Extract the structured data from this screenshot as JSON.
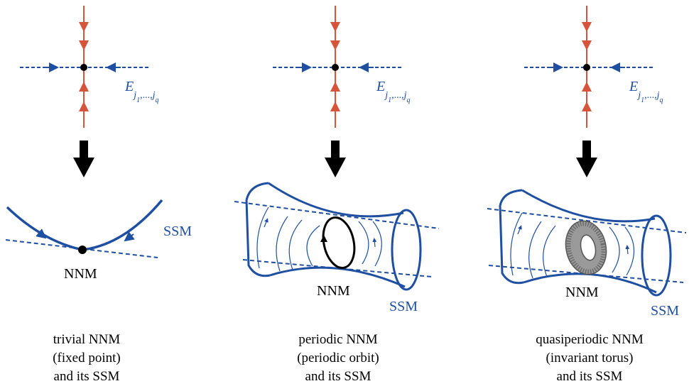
{
  "colors": {
    "blue": "#1f4fa0",
    "light_blue": "#3f63c4",
    "red": "#d6553a",
    "black": "#000000",
    "torus_grey": "#8a8a8a"
  },
  "panels": [
    {
      "id": "trivial",
      "subspace_label": "E_{j1,...,jq}",
      "subspace_base": "E",
      "subspace_sub": "j",
      "subspace_sub1": "1",
      "subspace_sub_rest": ",...,",
      "subspace_sub_end": "j",
      "subspace_sub_q": "q",
      "manifold_label": "SSM",
      "nnm_label": "NNM",
      "caption": [
        "trivial NNM",
        "(fixed point)",
        "and its SSM"
      ]
    },
    {
      "id": "periodic",
      "subspace_base": "E",
      "subspace_sub": "j",
      "subspace_sub1": "1",
      "subspace_sub_rest": ",...,",
      "subspace_sub_end": "j",
      "subspace_sub_q": "q",
      "manifold_label": "SSM",
      "nnm_label": "NNM",
      "caption": [
        "periodic NNM",
        "(periodic orbit)",
        "and its SSM"
      ]
    },
    {
      "id": "quasiperiodic",
      "subspace_base": "E",
      "subspace_sub": "j",
      "subspace_sub1": "1",
      "subspace_sub_rest": ",...,",
      "subspace_sub_end": "j",
      "subspace_sub_q": "q",
      "manifold_label": "SSM",
      "nnm_label": "NNM",
      "caption": [
        "quasiperiodic NNM",
        "(invariant torus)",
        "and its SSM"
      ]
    }
  ]
}
